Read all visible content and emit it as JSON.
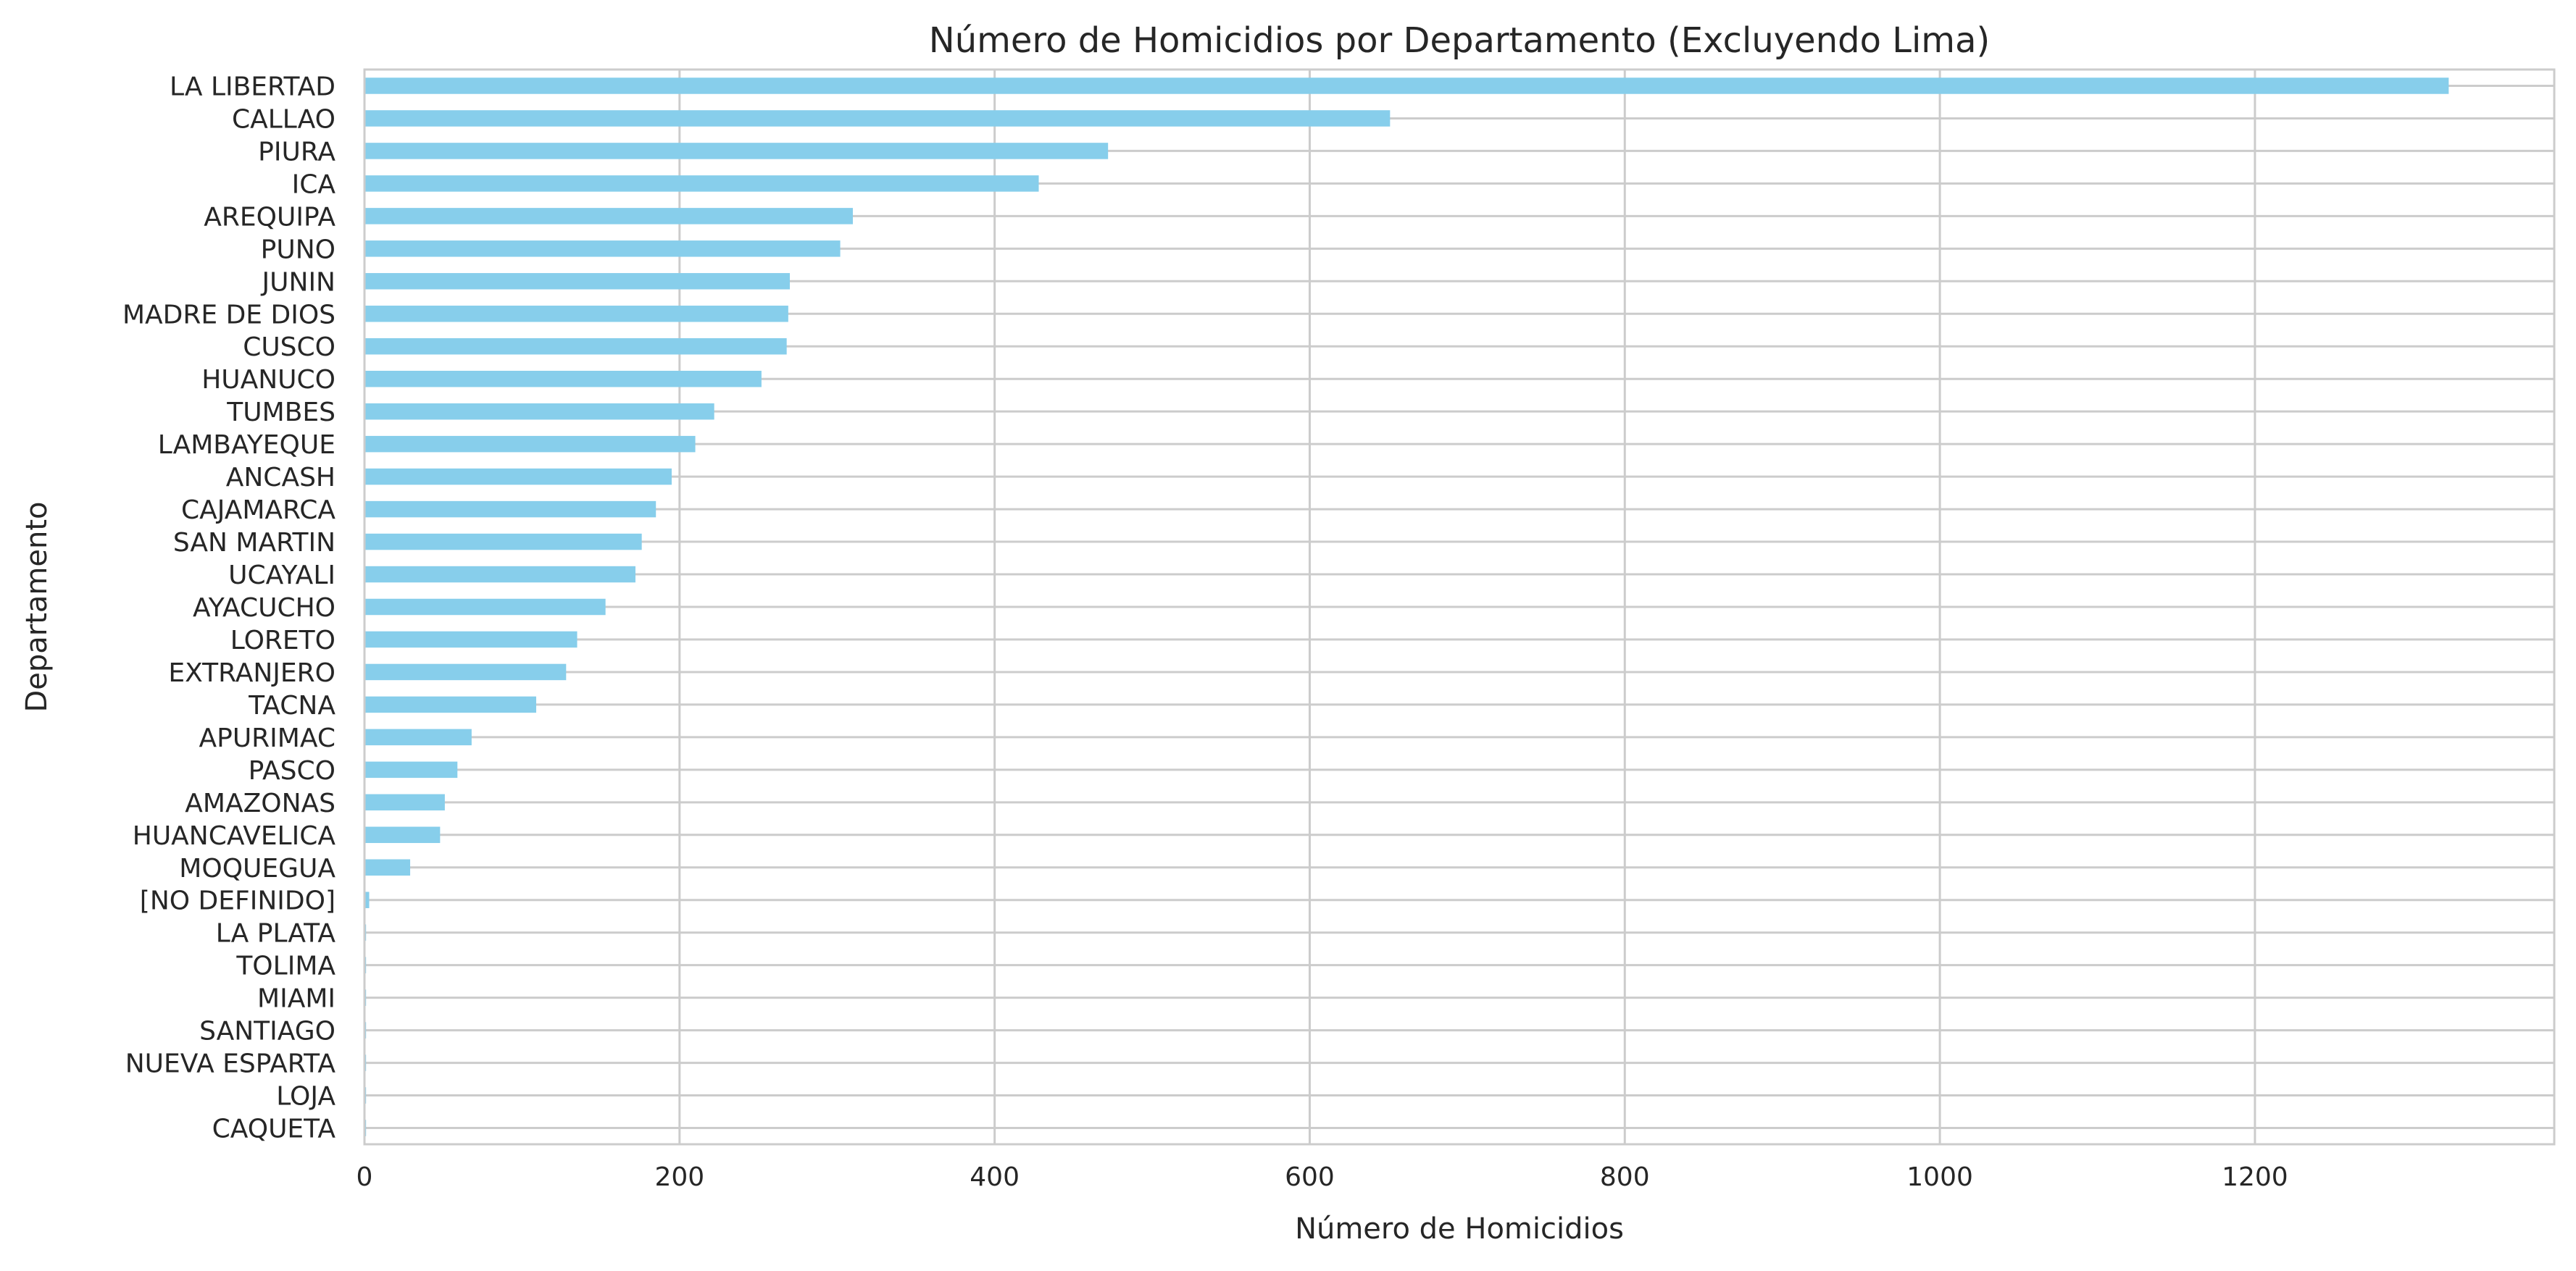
{
  "chart_data": {
    "type": "bar",
    "orientation": "horizontal",
    "title": "Número de Homicidios por Departamento (Excluyendo Lima)",
    "xlabel": "Número de Homicidios",
    "ylabel": "Departamento",
    "xlim": [
      0,
      1390
    ],
    "xticks": [
      0,
      200,
      400,
      600,
      800,
      1000,
      1200
    ],
    "grid": true,
    "bar_color": "#87CEEB",
    "categories": [
      "LA LIBERTAD",
      "CALLAO",
      "PIURA",
      "ICA",
      "AREQUIPA",
      "PUNO",
      "JUNIN",
      "MADRE DE DIOS",
      "CUSCO",
      "HUANUCO",
      "TUMBES",
      "LAMBAYEQUE",
      "ANCASH",
      "CAJAMARCA",
      "SAN MARTIN",
      "UCAYALI",
      "AYACUCHO",
      "LORETO",
      "EXTRANJERO",
      "TACNA",
      "APURIMAC",
      "PASCO",
      "AMAZONAS",
      "HUANCAVELICA",
      "MOQUEGUA",
      "[NO DEFINIDO]",
      "LA PLATA",
      "TOLIMA",
      "MIAMI",
      "SANTIAGO",
      "NUEVA ESPARTA",
      "LOJA",
      "CAQUETA"
    ],
    "values": [
      1323,
      651,
      472,
      428,
      310,
      302,
      270,
      269,
      268,
      252,
      222,
      210,
      195,
      185,
      176,
      172,
      153,
      135,
      128,
      109,
      68,
      59,
      51,
      48,
      29,
      3,
      1,
      1,
      1,
      1,
      1,
      1,
      1
    ]
  }
}
